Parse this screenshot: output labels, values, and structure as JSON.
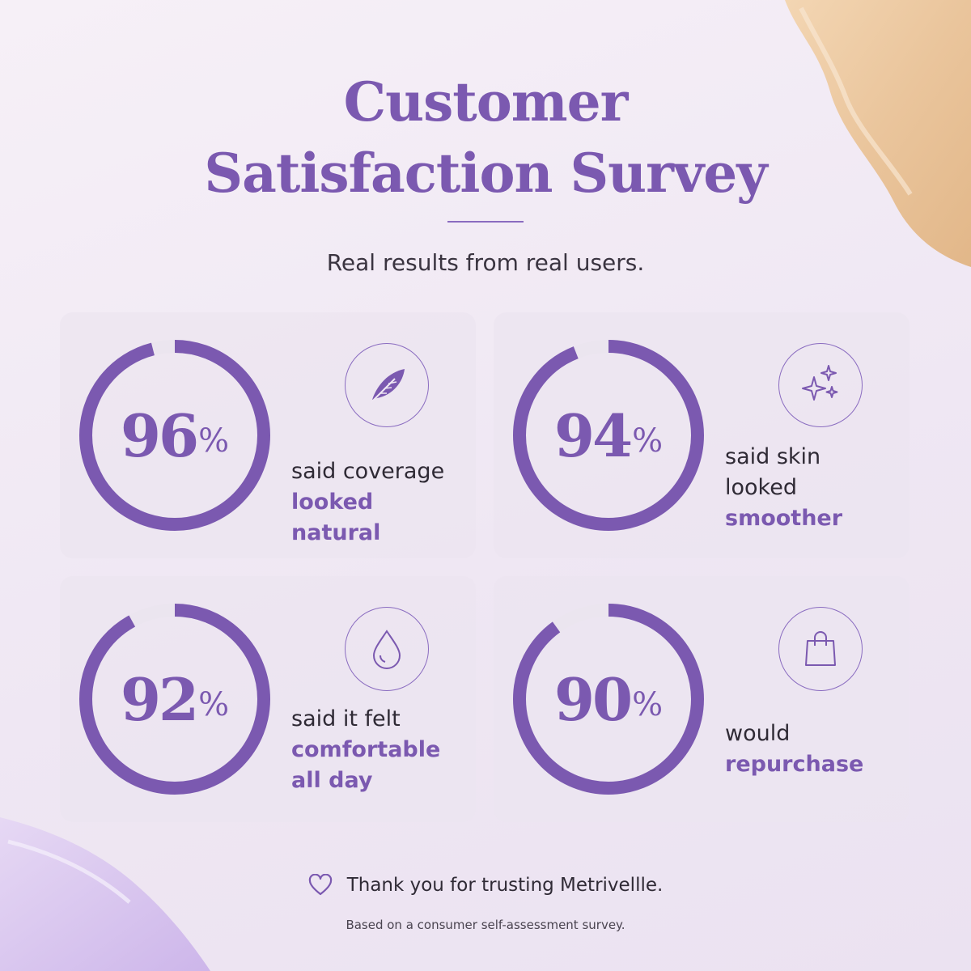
{
  "header": {
    "title_line1": "Customer",
    "title_line2": "Satisfaction Survey",
    "subtitle": "Real results from real users."
  },
  "stats": [
    {
      "percent": 96,
      "value": "96",
      "sign": "%",
      "line1": "said coverage",
      "line2": "",
      "accent1": "looked natural",
      "accent2": "",
      "icon": "feather-icon"
    },
    {
      "percent": 94,
      "value": "94",
      "sign": "%",
      "line1": "said skin",
      "line2": "looked",
      "accent1": "smoother",
      "accent2": "",
      "icon": "sparkles-icon"
    },
    {
      "percent": 92,
      "value": "92",
      "sign": "%",
      "line1": "said it felt",
      "line2": "",
      "accent1": "comfortable",
      "accent2": "all day",
      "icon": "droplet-icon"
    },
    {
      "percent": 90,
      "value": "90",
      "sign": "%",
      "line1": "would",
      "line2": "",
      "accent1": "repurchase",
      "accent2": "",
      "icon": "shopping-bag-icon"
    }
  ],
  "footer": {
    "thanks": "Thank you for trusting Metrivellle.",
    "note": "Based on a consumer self-assessment survey."
  },
  "colors": {
    "accent": "#7b59b0",
    "ring_track": "#ebe5ef",
    "background": "#f3edf5"
  }
}
